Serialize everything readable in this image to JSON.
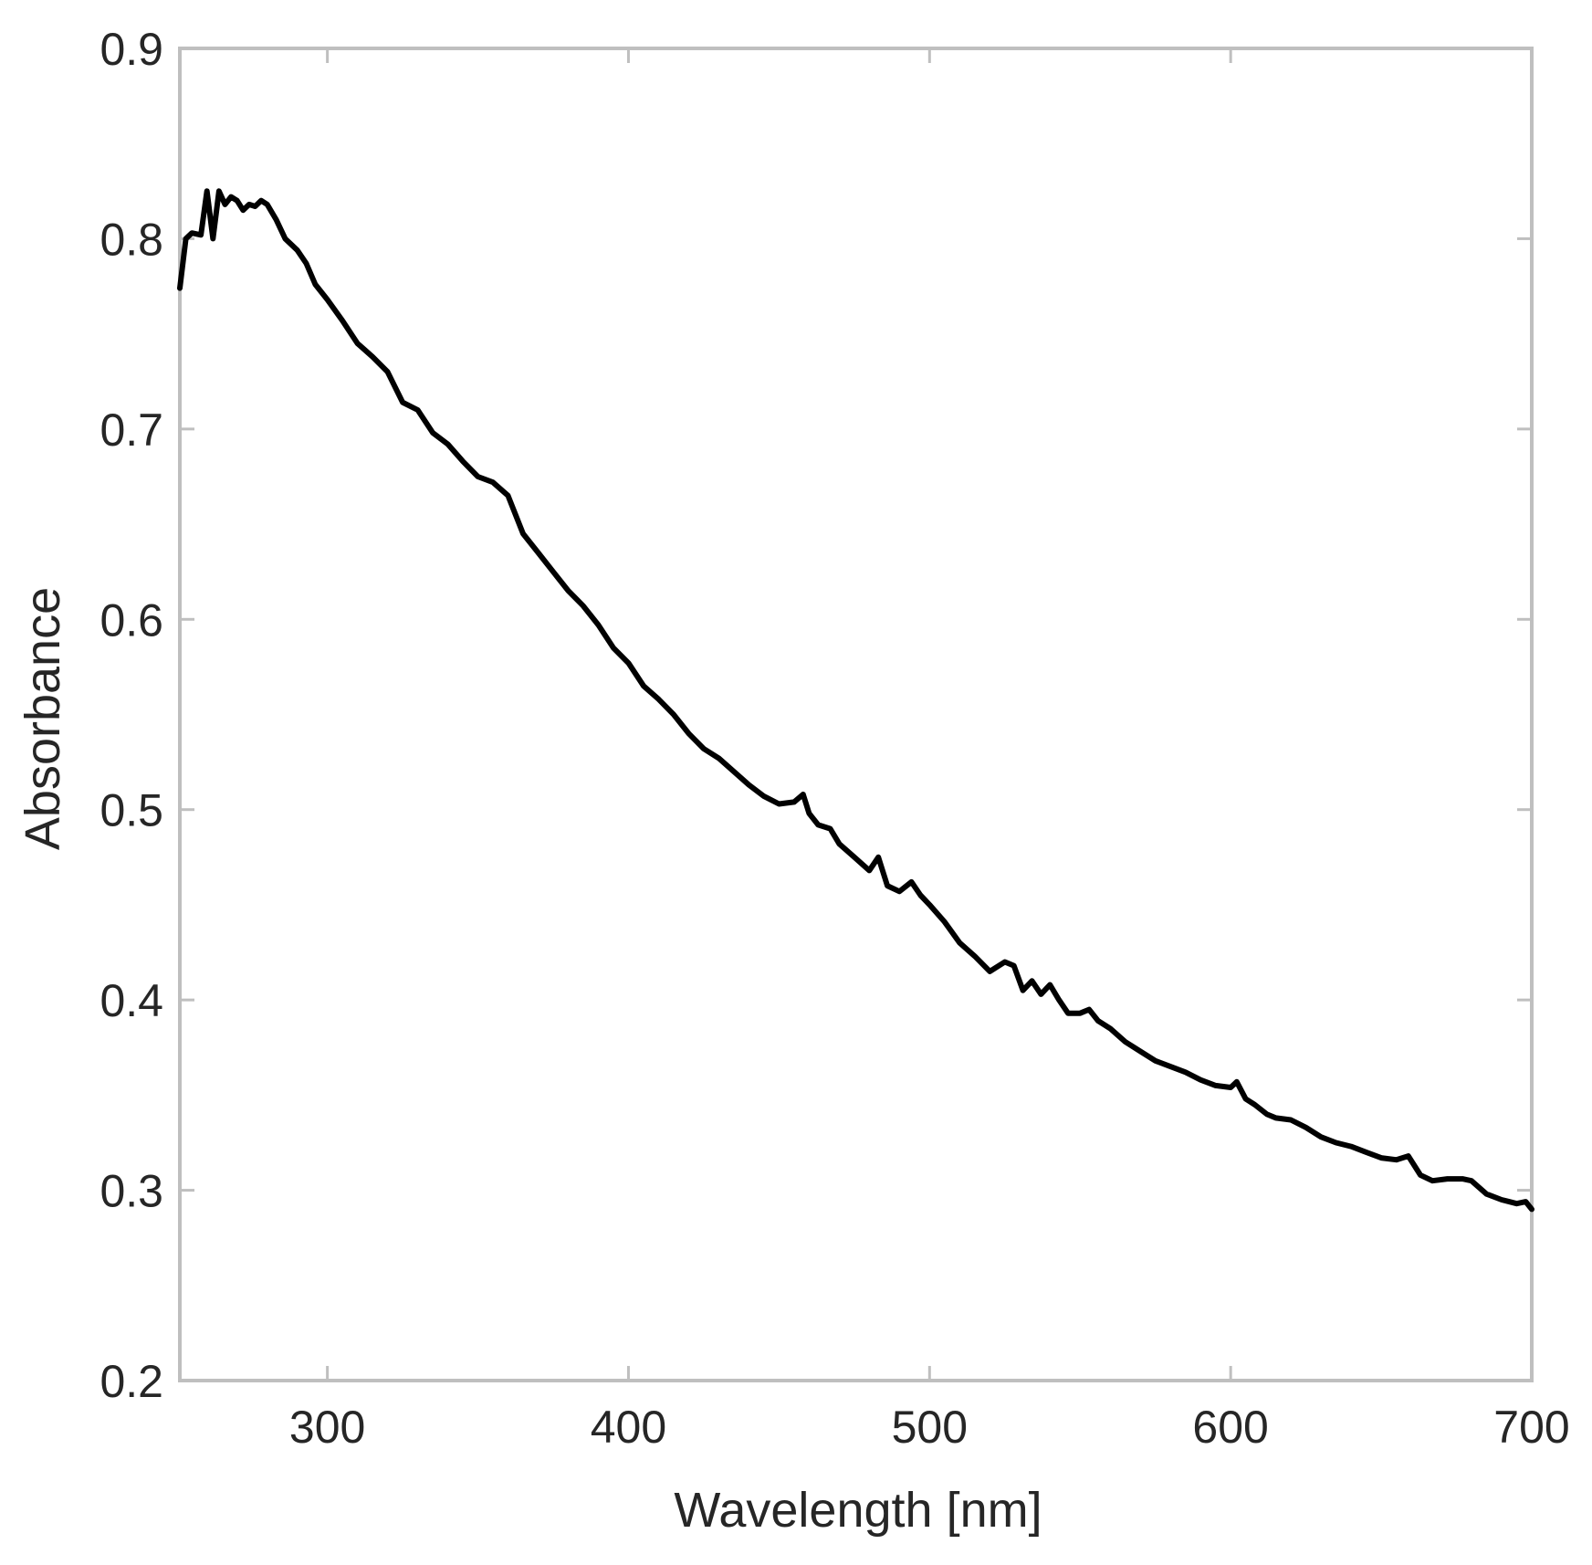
{
  "chart_data": {
    "type": "line",
    "title": "",
    "xlabel": "Wavelength [nm]",
    "ylabel": "Absorbance",
    "xlim": [
      251,
      700
    ],
    "ylim": [
      0.2,
      0.9
    ],
    "xticks": [
      300,
      400,
      500,
      600,
      700
    ],
    "yticks": [
      0.2,
      0.3,
      0.4,
      0.5,
      0.6,
      0.7,
      0.8,
      0.9
    ],
    "xtick_labels": [
      "300",
      "400",
      "500",
      "600",
      "700"
    ],
    "ytick_labels": [
      "0.2",
      "0.3",
      "0.4",
      "0.5",
      "0.6",
      "0.7",
      "0.8",
      "0.9"
    ],
    "grid": false,
    "box": true,
    "line_color": "#000000",
    "axis_color": "#bfbfbf",
    "text_color": "#262626",
    "series": [
      {
        "x": [
          251,
          253,
          255,
          258,
          260,
          262,
          264,
          266,
          268,
          270,
          272,
          274,
          276,
          278,
          280,
          283,
          286,
          290,
          293,
          296,
          300,
          305,
          310,
          315,
          320,
          325,
          330,
          335,
          340,
          345,
          350,
          355,
          360,
          365,
          370,
          375,
          380,
          385,
          390,
          395,
          400,
          405,
          410,
          415,
          420,
          425,
          430,
          435,
          440,
          445,
          450,
          455,
          458,
          460,
          463,
          467,
          470,
          475,
          480,
          483,
          486,
          490,
          494,
          497,
          500,
          505,
          510,
          515,
          520,
          525,
          528,
          531,
          534,
          537,
          540,
          543,
          546,
          550,
          553,
          556,
          560,
          565,
          570,
          575,
          580,
          585,
          590,
          595,
          600,
          602,
          605,
          608,
          612,
          615,
          620,
          625,
          630,
          635,
          640,
          645,
          650,
          655,
          659,
          663,
          667,
          672,
          677,
          680,
          685,
          690,
          695,
          698,
          700
        ],
        "y": [
          0.774,
          0.8,
          0.803,
          0.802,
          0.825,
          0.8,
          0.825,
          0.818,
          0.822,
          0.82,
          0.815,
          0.818,
          0.817,
          0.82,
          0.818,
          0.81,
          0.8,
          0.794,
          0.787,
          0.776,
          0.768,
          0.757,
          0.745,
          0.738,
          0.73,
          0.714,
          0.71,
          0.698,
          0.692,
          0.683,
          0.675,
          0.672,
          0.665,
          0.645,
          0.635,
          0.625,
          0.615,
          0.607,
          0.597,
          0.585,
          0.577,
          0.565,
          0.558,
          0.55,
          0.54,
          0.532,
          0.527,
          0.52,
          0.513,
          0.507,
          0.503,
          0.504,
          0.508,
          0.498,
          0.492,
          0.49,
          0.482,
          0.475,
          0.468,
          0.475,
          0.46,
          0.457,
          0.462,
          0.455,
          0.45,
          0.441,
          0.43,
          0.423,
          0.415,
          0.42,
          0.418,
          0.405,
          0.41,
          0.403,
          0.408,
          0.4,
          0.393,
          0.393,
          0.395,
          0.389,
          0.385,
          0.378,
          0.373,
          0.368,
          0.365,
          0.362,
          0.358,
          0.355,
          0.354,
          0.357,
          0.348,
          0.345,
          0.34,
          0.338,
          0.337,
          0.333,
          0.328,
          0.325,
          0.323,
          0.32,
          0.317,
          0.316,
          0.318,
          0.308,
          0.305,
          0.306,
          0.306,
          0.305,
          0.298,
          0.295,
          0.293,
          0.294,
          0.29
        ]
      }
    ]
  }
}
